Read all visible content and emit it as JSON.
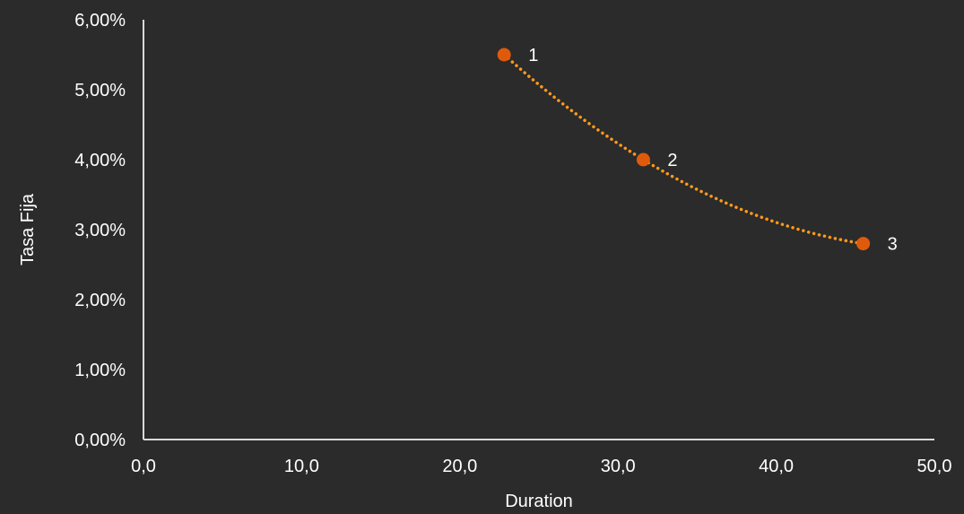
{
  "chart_data": {
    "type": "scatter",
    "xlabel": "Duration",
    "ylabel": "Tasa Fija",
    "xlim": [
      0,
      50
    ],
    "ylim": [
      0,
      0.06
    ],
    "x_ticks": [
      "0,0",
      "10,0",
      "20,0",
      "30,0",
      "40,0",
      "50,0"
    ],
    "y_ticks": [
      "0,00%",
      "1,00%",
      "2,00%",
      "3,00%",
      "4,00%",
      "5,00%",
      "6,00%"
    ],
    "points": [
      {
        "label": "1",
        "x": 22.8,
        "y": 0.055
      },
      {
        "label": "2",
        "x": 31.6,
        "y": 0.04
      },
      {
        "label": "3",
        "x": 45.5,
        "y": 0.028
      }
    ],
    "trendline": {
      "type": "polynomial",
      "style": "dotted"
    },
    "grid": false,
    "legend": "none",
    "colors": {
      "background": "#2b2b2b",
      "point": "#e05a0c",
      "trendline": "#ff9a1a",
      "axis": "#d9d9d9",
      "text": "#ffffff"
    }
  }
}
